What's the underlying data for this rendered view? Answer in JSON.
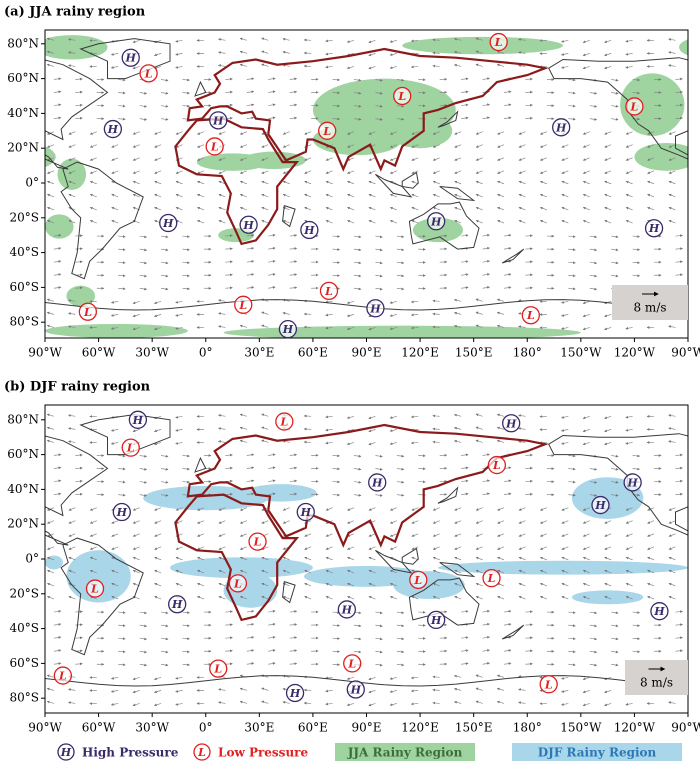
{
  "panels": [
    {
      "title": "(a) JJA rainy region",
      "lat_labels": [
        "80°N",
        "60°N",
        "40°N",
        "20°N",
        "0°",
        "20°S",
        "40°S",
        "60°S",
        "80°S"
      ],
      "lon_labels": [
        "90°W",
        "60°W",
        "30°W",
        "0°",
        "30°E",
        "60°E",
        "90°E",
        "120°E",
        "150°E",
        "180°",
        "150°W",
        "120°W",
        "90°W"
      ],
      "markers": [
        "H",
        "L",
        "H",
        "L",
        "L",
        "L",
        "H",
        "H",
        "L",
        "L",
        "H",
        "H",
        "H",
        "H",
        "H",
        "L",
        "L",
        "L",
        "H",
        "H",
        "L"
      ],
      "scale_label": "8 m/s"
    },
    {
      "title": "(b) DJF rainy region",
      "lat_labels": [
        "80°N",
        "60°N",
        "40°N",
        "20°N",
        "0°",
        "20°S",
        "40°S",
        "60°S",
        "80°S"
      ],
      "lon_labels": [
        "90°W",
        "60°W",
        "30°W",
        "0°",
        "30°E",
        "60°E",
        "90°E",
        "120°E",
        "150°E",
        "180°",
        "150°W",
        "120°W",
        "90°W"
      ],
      "markers": [
        "H",
        "L",
        "H",
        "L",
        "H",
        "L",
        "H",
        "H",
        "H",
        "H",
        "L",
        "L",
        "L",
        "H",
        "H",
        "L",
        "L",
        "H",
        "H",
        "L",
        "L",
        "L",
        "H",
        "H",
        "L"
      ],
      "scale_label": "8 m/s"
    }
  ],
  "legend": {
    "high_symbol": "H",
    "high": "High Pressure",
    "low_symbol": "L",
    "low": "Low Pressure",
    "jja": "JJA Rainy Region",
    "djf": "DJF Rainy Region"
  }
}
